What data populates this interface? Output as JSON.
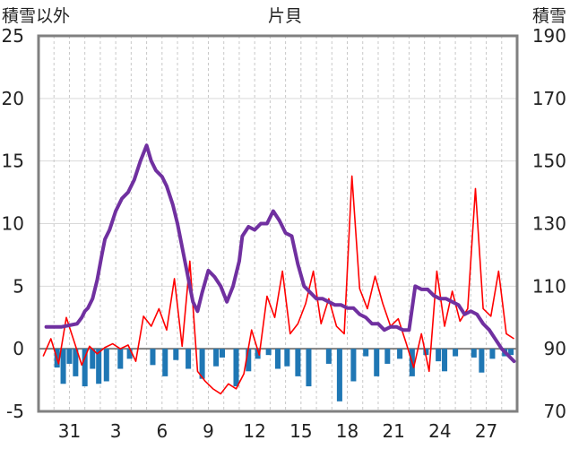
{
  "chart_data": {
    "type": "line",
    "title": "片貝",
    "ylabel_left": "積雪以外",
    "ylabel_right": "積雪",
    "y_left": {
      "ticks": [
        "25",
        "20",
        "15",
        "10",
        "5",
        "0",
        "-5"
      ],
      "min": -5,
      "max": 25
    },
    "y_right": {
      "ticks": [
        "190",
        "170",
        "150",
        "130",
        "110",
        "90",
        "70"
      ],
      "min": 70,
      "max": 190
    },
    "x_ticks": [
      "31",
      "3",
      "6",
      "9",
      "12",
      "15",
      "18",
      "21",
      "24",
      "27"
    ],
    "x_tick_days": [
      2,
      5,
      8,
      11,
      14,
      17,
      20,
      23,
      26,
      29
    ],
    "x_range": [
      0,
      31
    ],
    "grid": true,
    "colors": {
      "snow_depth": "#7030a0",
      "temperature": "#ff0000",
      "precipitation": "#1f77b4",
      "frame": "#808080"
    },
    "series": [
      {
        "type": "line",
        "axis": "right",
        "x": [
          0.5,
          1.5,
          2.5,
          2.8,
          3.0,
          3.2,
          3.5,
          3.8,
          4.1,
          4.3,
          4.6,
          5.0,
          5.4,
          5.8,
          6.2,
          6.6,
          7.0,
          7.3,
          7.6,
          8.0,
          8.3,
          8.7,
          9.0,
          9.4,
          9.8,
          10.0,
          10.3,
          10.6,
          11.0,
          11.4,
          11.8,
          12.2,
          12.6,
          13.0,
          13.2,
          13.6,
          14.0,
          14.4,
          14.8,
          15.2,
          15.6,
          16.0,
          16.4,
          16.8,
          17.2,
          17.6,
          18.0,
          18.4,
          18.8,
          19.2,
          19.6,
          20.0,
          20.4,
          20.8,
          21.2,
          21.6,
          22.0,
          22.4,
          22.8,
          23.2,
          23.6,
          24.0,
          24.4,
          24.8,
          25.2,
          25.6,
          26.0,
          26.4,
          26.8,
          27.2,
          27.6,
          28.0,
          28.4,
          28.8,
          29.2,
          29.6,
          30.0,
          30.4,
          30.8
        ],
        "y": [
          97,
          97,
          98,
          100,
          102,
          103,
          106,
          112,
          120,
          125,
          128,
          134,
          138,
          140,
          144,
          150,
          155,
          150,
          147,
          145,
          142,
          136,
          130,
          120,
          110,
          105,
          102,
          108,
          115,
          113,
          110,
          105,
          110,
          118,
          126,
          129,
          128,
          130,
          130,
          134,
          131,
          127,
          126,
          117,
          110,
          108,
          106,
          106,
          105,
          104,
          104,
          103,
          103,
          101,
          100,
          98,
          98,
          96,
          97,
          97,
          96,
          96,
          110,
          109,
          109,
          107,
          106,
          106,
          105,
          104,
          101,
          102,
          101,
          98,
          96,
          93,
          90,
          88,
          86
        ]
      },
      {
        "type": "line",
        "axis": "left",
        "x": [
          0.3,
          0.8,
          1.3,
          1.8,
          2.3,
          2.8,
          3.3,
          3.8,
          4.3,
          4.8,
          5.3,
          5.8,
          6.3,
          6.8,
          7.3,
          7.8,
          8.3,
          8.8,
          9.3,
          9.8,
          10.3,
          10.8,
          11.3,
          11.8,
          12.3,
          12.8,
          13.3,
          13.8,
          14.3,
          14.8,
          15.3,
          15.8,
          16.3,
          16.8,
          17.3,
          17.8,
          18.3,
          18.8,
          19.3,
          19.8,
          20.3,
          20.8,
          21.3,
          21.8,
          22.3,
          22.8,
          23.3,
          23.8,
          24.3,
          24.8,
          25.3,
          25.8,
          26.3,
          26.8,
          27.3,
          27.8,
          28.3,
          28.8,
          29.3,
          29.8,
          30.3,
          30.8
        ],
        "y": [
          -0.6,
          0.8,
          -1.2,
          2.5,
          0.6,
          -1.3,
          0.2,
          -0.4,
          0.1,
          0.4,
          0.0,
          0.3,
          -1.0,
          2.6,
          1.8,
          3.2,
          1.5,
          5.6,
          0.2,
          7.0,
          -1.8,
          -2.6,
          -3.2,
          -3.6,
          -2.8,
          -3.2,
          -2.0,
          1.5,
          -0.5,
          4.2,
          2.5,
          6.2,
          1.2,
          2.0,
          3.6,
          6.2,
          2.0,
          4.0,
          1.8,
          1.2,
          13.8,
          4.8,
          3.2,
          5.8,
          3.6,
          1.8,
          2.4,
          0.5,
          -1.5,
          1.2,
          -1.8,
          6.2,
          1.8,
          4.6,
          2.2,
          3.2,
          12.8,
          3.2,
          2.6,
          6.2,
          1.2,
          0.8
        ]
      },
      {
        "type": "bar",
        "axis": "left",
        "x": [
          1.2,
          1.6,
          2.0,
          2.4,
          3.0,
          3.5,
          3.9,
          4.4,
          5.3,
          5.9,
          7.4,
          8.2,
          8.9,
          9.7,
          10.6,
          11.5,
          11.9,
          12.8,
          13.6,
          14.2,
          14.9,
          15.5,
          16.1,
          16.8,
          17.5,
          18.8,
          19.5,
          20.4,
          21.2,
          21.9,
          22.6,
          23.4,
          24.2,
          25.1,
          25.9,
          26.3,
          27.0,
          28.2,
          28.7,
          29.4,
          30.2,
          30.6
        ],
        "values": [
          -1.5,
          -2.8,
          -1.2,
          -2.2,
          -3.0,
          -1.6,
          -2.8,
          -2.6,
          -1.6,
          -0.8,
          -1.3,
          -2.2,
          -0.9,
          -1.6,
          -2.4,
          -1.4,
          -0.7,
          -3.0,
          -1.8,
          -0.8,
          -0.5,
          -1.6,
          -1.4,
          -2.2,
          -3.0,
          -1.2,
          -4.2,
          -2.6,
          -0.6,
          -2.2,
          -1.2,
          -0.8,
          -2.2,
          -0.5,
          -1.0,
          -1.8,
          -0.6,
          -0.7,
          -1.9,
          -0.8,
          -0.6,
          -0.5
        ]
      }
    ]
  }
}
